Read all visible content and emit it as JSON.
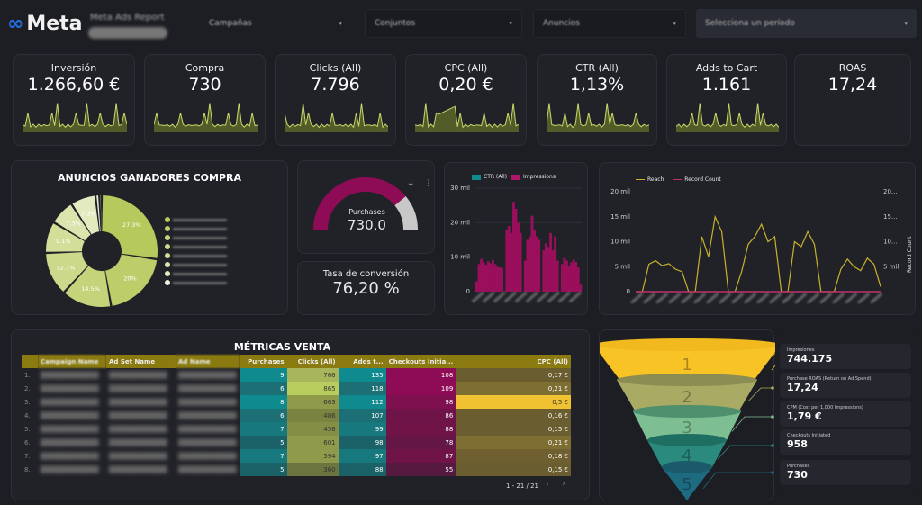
{
  "header": {
    "logo": "Meta",
    "report_title": "Meta Ads Report",
    "filters": [
      {
        "label": "Campañas"
      },
      {
        "label": "Conjuntos"
      },
      {
        "label": "Anuncios"
      },
      {
        "label": "Selecciona un período"
      }
    ]
  },
  "kpis": [
    {
      "label": "Inversión",
      "value": "1.266,60 €"
    },
    {
      "label": "Compra",
      "value": "730"
    },
    {
      "label": "Clicks (All)",
      "value": "7.796"
    },
    {
      "label": "CPC (All)",
      "value": "0,20 €"
    },
    {
      "label": "CTR (All)",
      "value": "1,13%"
    },
    {
      "label": "Adds to Cart",
      "value": "1.161"
    },
    {
      "label": "ROAS",
      "value": "17,24"
    }
  ],
  "colors": {
    "accent_olive": "#b6c95c",
    "magenta": "#8e0c55",
    "teal": "#0f8a8f",
    "gold": "#f2c230",
    "background": "#1d1e23"
  },
  "chart_data": [
    {
      "type": "pie",
      "title": "ANUNCIOS GANADORES COMPRA",
      "values": [
        27.3,
        20,
        14.5,
        12.7,
        9.1,
        7.3,
        7.3,
        1.1,
        0.7
      ],
      "labels_shown": [
        "27.3%",
        "20%",
        "14.5%",
        "12.7%",
        "9.1%",
        "7.3%",
        "7.3%"
      ],
      "legend_position": "right"
    },
    {
      "type": "bar",
      "legend": [
        "CTR (All)",
        "Impressions"
      ],
      "yticks": [
        "0",
        "10 mil",
        "20 mil",
        "30 mil"
      ],
      "ylim": [
        0,
        30000
      ],
      "series": [
        {
          "name": "Impressions",
          "values": [
            3000,
            8000,
            9500,
            8500,
            7800,
            8800,
            8200,
            9200,
            8000,
            7200,
            7000,
            6800,
            0,
            18000,
            19000,
            17000,
            26000,
            24000,
            20000,
            17000,
            0,
            9000,
            15000,
            16000,
            22000,
            18000,
            16000,
            15000,
            0,
            12000,
            14000,
            13000,
            17000,
            12000,
            16000,
            9000,
            0,
            8000,
            9800,
            9000,
            7500,
            8500,
            9300,
            8600,
            7000,
            2000
          ]
        }
      ]
    },
    {
      "type": "line",
      "legend": [
        "Reach",
        "Record Count"
      ],
      "yticks": [
        "0",
        "5 mil",
        "10 mil",
        "15 mil",
        "20 mil"
      ],
      "yticks_right": [
        "5 mil",
        "10...",
        "15...",
        "20..."
      ],
      "ylabel_right": "Record Count",
      "ylim": [
        0,
        20000
      ],
      "series": [
        {
          "name": "Reach",
          "values": [
            0,
            0,
            5500,
            6200,
            5200,
            5600,
            4500,
            4000,
            0,
            0,
            11000,
            7000,
            15000,
            12000,
            0,
            0,
            4000,
            9500,
            11000,
            13500,
            10000,
            11000,
            0,
            0,
            10000,
            9000,
            12000,
            9500,
            0,
            0,
            0,
            4500,
            6500,
            5000,
            4200,
            6700,
            5500,
            1000
          ]
        },
        {
          "name": "Record Count",
          "values": [
            0,
            0,
            0,
            0,
            0,
            0,
            0,
            0,
            0,
            0,
            0,
            0,
            0,
            0,
            0,
            0,
            0,
            0,
            0,
            0,
            0,
            0,
            0,
            0,
            0,
            0,
            0,
            0,
            0,
            0,
            0,
            0,
            0,
            0,
            0,
            0,
            0,
            0
          ]
        }
      ]
    }
  ],
  "gauge": {
    "label": "Purchases",
    "value": "730,0",
    "fill_fraction": 0.78
  },
  "conversion": {
    "label": "Tasa de conversión",
    "value": "76,20 %"
  },
  "table": {
    "title": "MÉTRICAS VENTA",
    "columns": [
      "Campaign Name",
      "Ad Set Name",
      "Ad Name",
      "Purchases",
      "Clicks (All)",
      "Adds t...",
      "Checkouts Initia...",
      "CPC (All)"
    ],
    "rows": [
      {
        "n": "1.",
        "p": "9",
        "c": "766",
        "a": "135",
        "ch": "108",
        "cpc": "0,17 €"
      },
      {
        "n": "2.",
        "p": "6",
        "c": "865",
        "a": "118",
        "ch": "109",
        "cpc": "0,21 €"
      },
      {
        "n": "3.",
        "p": "8",
        "c": "663",
        "a": "112",
        "ch": "98",
        "cpc": "0,5 €"
      },
      {
        "n": "4.",
        "p": "6",
        "c": "486",
        "a": "107",
        "ch": "86",
        "cpc": "0,16 €"
      },
      {
        "n": "5.",
        "p": "7",
        "c": "456",
        "a": "99",
        "ch": "88",
        "cpc": "0,15 €"
      },
      {
        "n": "6.",
        "p": "5",
        "c": "601",
        "a": "98",
        "ch": "78",
        "cpc": "0,21 €"
      },
      {
        "n": "7.",
        "p": "7",
        "c": "594",
        "a": "97",
        "ch": "87",
        "cpc": "0,18 €"
      },
      {
        "n": "8.",
        "p": "5",
        "c": "360",
        "a": "88",
        "ch": "55",
        "cpc": "0,15 €"
      }
    ],
    "pagination": "1 - 21 / 21"
  },
  "funnel": {
    "steps": [
      "1",
      "2",
      "3",
      "4",
      "5"
    ]
  },
  "metrics": [
    {
      "label": "Impresiones",
      "value": "744.175"
    },
    {
      "label": "Purchase ROAS (Return on Ad Spend)",
      "value": "17,24"
    },
    {
      "label": "CPM (Cost per 1,000 Impressions)",
      "value": "1,79 €"
    },
    {
      "label": "Checkouts Initiated",
      "value": "958"
    },
    {
      "label": "Purchases",
      "value": "730"
    }
  ]
}
